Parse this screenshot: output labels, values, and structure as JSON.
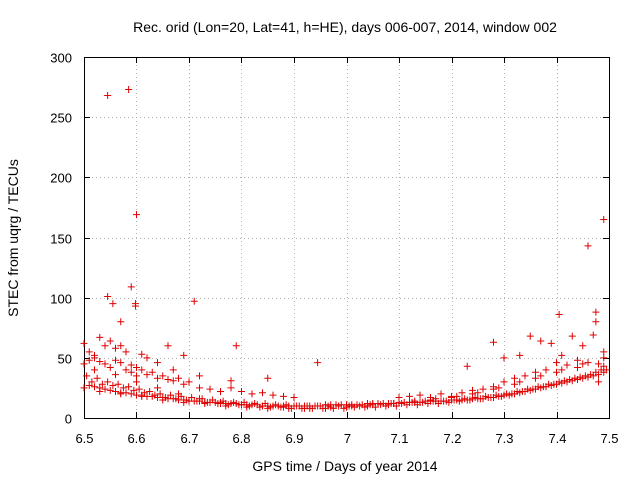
{
  "chart_data": {
    "type": "scatter",
    "title": "Rec. orid (Lon=20, Lat=41, h=HE), days 006-007, 2014, window 002",
    "xlabel": "GPS time / Days of year 2014",
    "ylabel": "STEC from uqrg / TECUs",
    "xlim": [
      6.5,
      7.5
    ],
    "ylim": [
      0,
      300
    ],
    "xticks": [
      "6.5",
      "6.6",
      "6.7",
      "6.8",
      "6.9",
      "7",
      "7.1",
      "7.2",
      "7.3",
      "7.4",
      "7.5"
    ],
    "yticks": [
      "0",
      "50",
      "100",
      "150",
      "200",
      "250",
      "300"
    ],
    "grid": true,
    "marker": "+",
    "color": "#e00000",
    "series": [
      {
        "name": "STEC",
        "x": [
          6.545,
          6.585,
          6.6,
          6.598,
          6.59,
          6.545,
          6.555,
          6.57,
          6.598,
          6.71,
          6.79,
          6.945,
          7.46,
          7.49,
          7.405,
          7.475,
          7.475,
          6.5,
          6.51,
          6.52,
          6.53,
          6.54,
          6.55,
          6.56,
          6.57,
          6.58,
          6.59,
          6.6,
          6.61,
          6.62,
          6.64,
          6.66,
          6.67,
          6.69,
          6.72,
          6.78,
          6.85,
          7.23,
          7.28,
          7.3,
          7.33,
          7.35,
          7.37,
          7.39,
          7.41,
          7.43,
          7.45,
          7.47,
          7.49,
          6.5,
          6.51,
          6.52,
          6.53,
          6.54,
          6.55,
          6.56,
          6.57,
          6.58,
          6.59,
          6.6,
          6.61,
          6.62,
          6.63,
          6.64,
          6.65,
          6.66,
          6.67,
          6.68,
          6.69,
          6.7,
          6.72,
          6.74,
          6.76,
          6.78,
          6.8,
          6.82,
          6.84,
          6.86,
          6.88,
          6.9,
          7.1,
          7.12,
          7.14,
          7.16,
          7.18,
          7.2,
          7.22,
          7.24,
          7.26,
          7.28,
          7.3,
          7.32,
          7.34,
          7.36,
          7.38,
          7.4,
          7.42,
          7.44,
          7.46,
          7.48,
          7.49,
          6.5,
          6.51,
          6.52,
          6.53,
          6.54,
          6.55,
          6.56,
          6.57,
          6.58,
          6.59,
          6.6,
          6.61,
          6.62,
          6.63,
          6.64,
          6.65,
          6.66,
          6.67,
          6.68,
          6.69,
          6.7,
          6.71,
          6.72,
          6.73,
          6.74,
          6.75,
          6.76,
          6.77,
          6.78,
          6.79,
          6.8,
          6.81,
          6.82,
          6.83,
          6.84,
          6.85,
          6.86,
          6.87,
          6.88,
          6.89,
          6.9,
          6.91,
          6.92,
          6.93,
          6.94,
          6.95,
          6.96,
          6.97,
          6.98,
          6.99,
          7.0,
          7.01,
          7.02,
          7.03,
          7.04,
          7.05,
          7.06,
          7.07,
          7.08,
          7.09,
          7.1,
          7.11,
          7.12,
          7.13,
          7.14,
          7.15,
          7.16,
          7.17,
          7.18,
          7.19,
          7.2,
          7.21,
          7.22,
          7.23,
          7.24,
          7.25,
          7.26,
          7.27,
          7.28,
          7.29,
          7.3,
          7.31,
          7.32,
          7.33,
          7.34,
          7.35,
          7.36,
          7.37,
          7.38,
          7.39,
          7.4,
          7.41,
          7.42,
          7.43,
          7.44,
          7.45,
          7.46,
          7.47,
          7.48,
          7.49,
          6.505,
          6.525,
          6.545,
          6.565,
          6.585,
          6.605,
          6.625,
          6.645,
          6.665,
          6.685,
          6.705,
          6.725,
          6.745,
          6.765,
          6.785,
          6.805,
          6.825,
          6.845,
          6.865,
          6.885,
          6.905,
          6.925,
          6.945,
          6.965,
          6.985,
          7.005,
          7.025,
          7.045,
          7.065,
          7.085,
          7.105,
          7.125,
          7.145,
          7.165,
          7.185,
          7.205,
          7.225,
          7.245,
          7.265,
          7.285,
          7.305,
          7.325,
          7.345,
          7.365,
          7.385,
          7.405,
          7.425,
          7.445,
          7.465,
          7.485,
          6.515,
          6.535,
          6.555,
          6.575,
          6.595,
          6.615,
          6.635,
          6.655,
          6.675,
          6.695,
          6.715,
          6.735,
          6.755,
          6.775,
          6.795,
          6.815,
          6.835,
          6.855,
          6.875,
          6.895,
          6.915,
          6.935,
          6.955,
          6.975,
          6.995,
          7.015,
          7.035,
          7.055,
          7.075,
          7.095,
          7.115,
          7.135,
          7.155,
          7.175,
          7.195,
          7.215,
          7.235,
          7.255,
          7.275,
          7.295,
          7.315,
          7.335,
          7.355,
          7.375,
          7.395,
          7.415,
          7.435,
          7.455,
          7.475,
          7.495,
          6.52,
          6.56,
          6.6,
          6.64,
          6.68,
          6.72,
          6.76,
          6.8,
          6.84,
          6.88,
          6.92,
          6.96,
          7.0,
          7.04,
          7.08,
          7.12,
          7.16,
          7.2,
          7.24,
          7.28,
          7.32,
          7.36,
          7.4,
          7.44,
          7.48,
          6.53,
          6.57,
          6.61,
          6.65,
          6.69,
          6.73,
          6.77,
          6.81,
          6.85,
          6.89,
          6.93,
          6.97,
          7.01,
          7.05,
          7.09,
          7.13,
          7.17,
          7.21,
          7.25,
          7.29,
          7.33,
          7.37,
          7.41,
          7.45,
          7.49
        ],
        "y": [
          268,
          273,
          169,
          95,
          109,
          101,
          95,
          80,
          93,
          97,
          60,
          46,
          143,
          165,
          86,
          88,
          80,
          62,
          55,
          52,
          67,
          60,
          64,
          58,
          60,
          55,
          44,
          42,
          53,
          50,
          46,
          60,
          40,
          52,
          35,
          31,
          33,
          43,
          63,
          50,
          52,
          68,
          64,
          62,
          52,
          68,
          60,
          69,
          55,
          45,
          48,
          50,
          47,
          45,
          42,
          48,
          46,
          40,
          38,
          35,
          40,
          36,
          38,
          33,
          35,
          32,
          31,
          33,
          28,
          30,
          25,
          24,
          22,
          25,
          22,
          20,
          21,
          19,
          18,
          17,
          17,
          18,
          19,
          17,
          20,
          18,
          21,
          23,
          24,
          26,
          30,
          33,
          35,
          38,
          40,
          46,
          44,
          48,
          46,
          45,
          43,
          25,
          27,
          26,
          25,
          24,
          23,
          22,
          21,
          21,
          20,
          19,
          19,
          18,
          18,
          17,
          17,
          16,
          16,
          15,
          15,
          14,
          14,
          14,
          13,
          13,
          13,
          12,
          12,
          12,
          12,
          11,
          11,
          11,
          11,
          10,
          10,
          10,
          10,
          10,
          10,
          10,
          10,
          10,
          10,
          10,
          10,
          11,
          11,
          11,
          11,
          11,
          11,
          11,
          11,
          12,
          12,
          12,
          12,
          12,
          12,
          13,
          13,
          13,
          13,
          13,
          14,
          14,
          14,
          14,
          14,
          15,
          15,
          15,
          15,
          16,
          16,
          16,
          17,
          17,
          18,
          19,
          19,
          20,
          21,
          22,
          23,
          24,
          25,
          26,
          27,
          28,
          29,
          30,
          31,
          32,
          33,
          34,
          35,
          36,
          38,
          35,
          33,
          30,
          28,
          26,
          24,
          22,
          20,
          19,
          18,
          17,
          16,
          15,
          14,
          13,
          13,
          12,
          12,
          11,
          11,
          10,
          10,
          10,
          10,
          10,
          10,
          10,
          11,
          11,
          12,
          12,
          13,
          13,
          14,
          14,
          15,
          16,
          17,
          18,
          19,
          20,
          22,
          24,
          26,
          28,
          30,
          32,
          34,
          36,
          40,
          30,
          28,
          27,
          25,
          23,
          21,
          19,
          17,
          16,
          15,
          14,
          13,
          12,
          11,
          11,
          10,
          9,
          9,
          9,
          8,
          8,
          8,
          8,
          8,
          8,
          9,
          9,
          9,
          10,
          10,
          11,
          11,
          12,
          12,
          13,
          14,
          15,
          16,
          17,
          18,
          20,
          22,
          24,
          26,
          28,
          31,
          33,
          35,
          38,
          40,
          40,
          36,
          30,
          25,
          20,
          16,
          13,
          11,
          10,
          9,
          8,
          8,
          9,
          10,
          11,
          13,
          15,
          17,
          20,
          24,
          28,
          33,
          38,
          42,
          30,
          22,
          20,
          18,
          15,
          13,
          12,
          10,
          9,
          8,
          8,
          8,
          9,
          10,
          11,
          12,
          14,
          16,
          18,
          21,
          25,
          30,
          35,
          40,
          45,
          50
        ]
      }
    ]
  }
}
